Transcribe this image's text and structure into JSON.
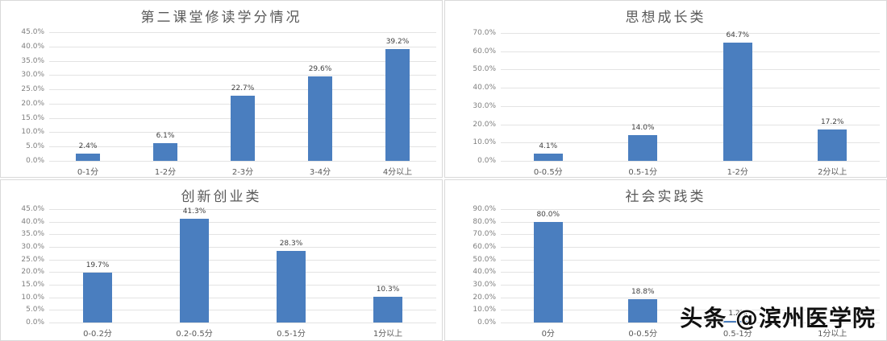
{
  "chart_data": [
    {
      "type": "bar",
      "title": "第二课堂修读学分情况",
      "categories": [
        "0-1分",
        "1-2分",
        "2-3分",
        "3-4分",
        "4分以上"
      ],
      "values": [
        2.4,
        6.1,
        22.7,
        29.6,
        39.2
      ],
      "value_labels": [
        "2.4%",
        "6.1%",
        "22.7%",
        "29.6%",
        "39.2%"
      ],
      "ylim": [
        0,
        45
      ],
      "ytick_step": 5,
      "ytick_labels": [
        "0.0%",
        "5.0%",
        "10.0%",
        "15.0%",
        "20.0%",
        "25.0%",
        "30.0%",
        "35.0%",
        "40.0%",
        "45.0%"
      ],
      "xlabel": "",
      "ylabel": "",
      "grid": true,
      "legend": "none"
    },
    {
      "type": "bar",
      "title": "思想成长类",
      "categories": [
        "0-0.5分",
        "0.5-1分",
        "1-2分",
        "2分以上"
      ],
      "values": [
        4.1,
        14.0,
        64.7,
        17.2
      ],
      "value_labels": [
        "4.1%",
        "14.0%",
        "64.7%",
        "17.2%"
      ],
      "ylim": [
        0,
        70
      ],
      "ytick_step": 10,
      "ytick_labels": [
        "0.0%",
        "10.0%",
        "20.0%",
        "30.0%",
        "40.0%",
        "50.0%",
        "60.0%",
        "70.0%"
      ],
      "xlabel": "",
      "ylabel": "",
      "grid": true,
      "legend": "none"
    },
    {
      "type": "bar",
      "title": "创新创业类",
      "categories": [
        "0-0.2分",
        "0.2-0.5分",
        "0.5-1分",
        "1分以上"
      ],
      "values": [
        19.7,
        41.3,
        28.3,
        10.3
      ],
      "value_labels": [
        "19.7%",
        "41.3%",
        "28.3%",
        "10.3%"
      ],
      "ylim": [
        0,
        45
      ],
      "ytick_step": 5,
      "ytick_labels": [
        "0.0%",
        "5.0%",
        "10.0%",
        "15.0%",
        "20.0%",
        "25.0%",
        "30.0%",
        "35.0%",
        "40.0%",
        "45.0%"
      ],
      "xlabel": "",
      "ylabel": "",
      "grid": true,
      "legend": "none"
    },
    {
      "type": "bar",
      "title": "社会实践类",
      "categories": [
        "0分",
        "0-0.5分",
        "0.5-1分",
        "1分以上"
      ],
      "values": [
        80.0,
        18.8,
        1.2,
        0.0
      ],
      "value_labels": [
        "80.0%",
        "18.8%",
        "1.2%",
        ""
      ],
      "ylim": [
        0,
        90
      ],
      "ytick_step": 10,
      "ytick_labels": [
        "0.0%",
        "10.0%",
        "20.0%",
        "30.0%",
        "40.0%",
        "50.0%",
        "60.0%",
        "70.0%",
        "80.0%",
        "90.0%"
      ],
      "xlabel": "",
      "ylabel": "",
      "grid": true,
      "legend": "none"
    }
  ],
  "style": {
    "bar_color": "#4a7ebf",
    "grid_color": "#e3e3e3"
  },
  "watermark": "头条 @滨州医学院"
}
